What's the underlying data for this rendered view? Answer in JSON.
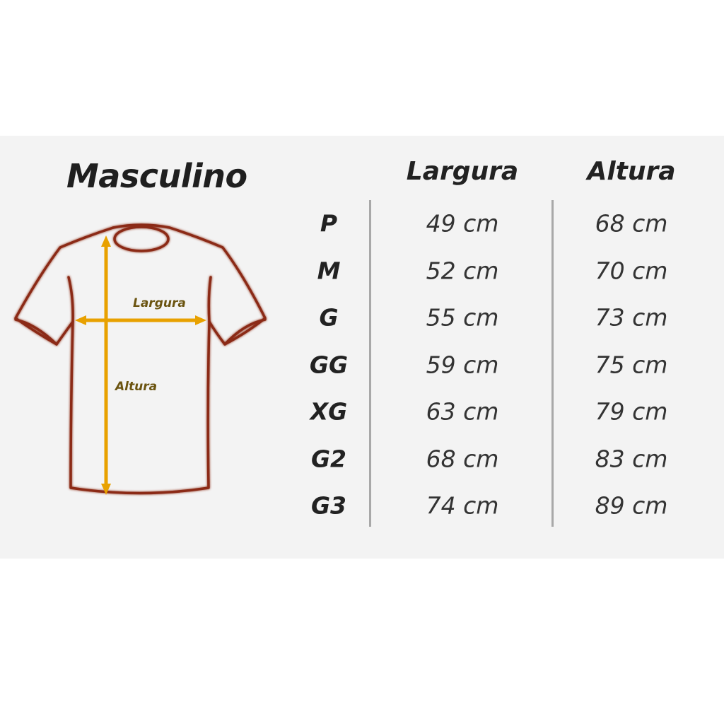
{
  "title": "Masculino",
  "diagram": {
    "width_label": "Largura",
    "height_label": "Altura",
    "outline_color": "#8b2a14",
    "arrow_color": "#e8a100"
  },
  "table": {
    "headers": [
      "Largura",
      "Altura"
    ],
    "rows": [
      {
        "size": "P",
        "largura": "49 cm",
        "altura": "68 cm"
      },
      {
        "size": "M",
        "largura": "52 cm",
        "altura": "70 cm"
      },
      {
        "size": "G",
        "largura": "55 cm",
        "altura": "73 cm"
      },
      {
        "size": "GG",
        "largura": "59 cm",
        "altura": "75 cm"
      },
      {
        "size": "XG",
        "largura": "63 cm",
        "altura": "79 cm"
      },
      {
        "size": "G2",
        "largura": "68 cm",
        "altura": "83 cm"
      },
      {
        "size": "G3",
        "largura": "74 cm",
        "altura": "89 cm"
      }
    ]
  }
}
